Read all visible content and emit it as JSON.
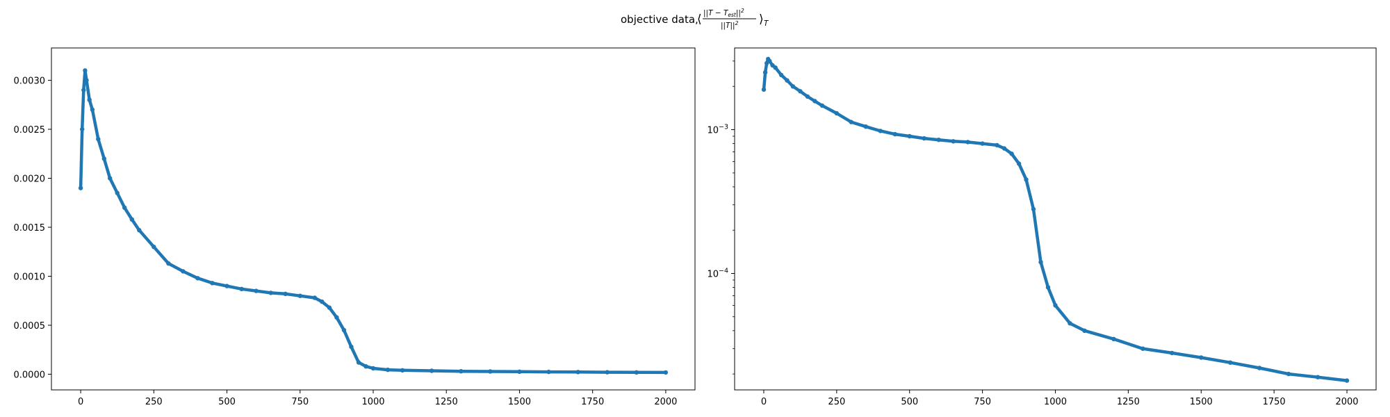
{
  "figure": {
    "suptitle_prefix": "objective data, ",
    "suptitle_math": {
      "open": "⟨",
      "numerator": "||T − T",
      "numerator_sub": "est",
      "numerator_close": "||",
      "numerator_sup": "2",
      "denominator": "||T||",
      "denominator_sup": "2",
      "close": "⟩",
      "close_sub": "T"
    },
    "line_color": "#1f77b4"
  },
  "chart_data": [
    {
      "type": "line",
      "marker": "dot",
      "yscale": "linear",
      "xlim": [
        -100,
        2100
      ],
      "ylim": [
        -0.00016,
        0.00333
      ],
      "xticks": [
        0,
        250,
        500,
        750,
        1000,
        1250,
        1500,
        1750,
        2000
      ],
      "xtick_labels": [
        "0",
        "250",
        "500",
        "750",
        "1000",
        "1250",
        "1500",
        "1750",
        "2000"
      ],
      "yticks": [
        0,
        0.0005,
        0.001,
        0.0015,
        0.002,
        0.0025,
        0.003
      ],
      "ytick_labels": [
        "0.0000",
        "0.0005",
        "0.0010",
        "0.0015",
        "0.0020",
        "0.0025",
        "0.0030"
      ],
      "grid": false,
      "series": [
        {
          "x": [
            0,
            5,
            10,
            15,
            20,
            30,
            40,
            60,
            80,
            100,
            125,
            150,
            175,
            200,
            250,
            300,
            350,
            400,
            450,
            500,
            550,
            600,
            650,
            700,
            750,
            800,
            825,
            850,
            875,
            900,
            925,
            950,
            975,
            1000,
            1050,
            1100,
            1200,
            1300,
            1400,
            1500,
            1600,
            1700,
            1800,
            1900,
            2000
          ],
          "y": [
            0.0019,
            0.0025,
            0.0029,
            0.0031,
            0.003,
            0.0028,
            0.0027,
            0.0024,
            0.0022,
            0.002,
            0.00185,
            0.0017,
            0.00158,
            0.00147,
            0.0013,
            0.00113,
            0.00105,
            0.00098,
            0.00093,
            0.0009,
            0.00087,
            0.00085,
            0.00083,
            0.00082,
            0.0008,
            0.00078,
            0.00074,
            0.00068,
            0.00058,
            0.00045,
            0.00028,
            0.00012,
            8e-05,
            6e-05,
            4.5e-05,
            4e-05,
            3.5e-05,
            3e-05,
            2.8e-05,
            2.6e-05,
            2.4e-05,
            2.2e-05,
            2e-05,
            1.9e-05,
            1.8e-05
          ]
        }
      ]
    },
    {
      "type": "line",
      "marker": "dot",
      "yscale": "log",
      "xlim": [
        -100,
        2100
      ],
      "ylim": [
        1.55e-05,
        0.0037
      ],
      "xticks": [
        0,
        250,
        500,
        750,
        1000,
        1250,
        1500,
        1750,
        2000
      ],
      "xtick_labels": [
        "0",
        "250",
        "500",
        "750",
        "1000",
        "1250",
        "1500",
        "1750",
        "2000"
      ],
      "yticks": [
        0.0001,
        0.001
      ],
      "ytick_base": [
        "10",
        "10"
      ],
      "ytick_exp": [
        "−4",
        "−3"
      ],
      "grid": false,
      "series": [
        {
          "x": [
            0,
            5,
            10,
            15,
            20,
            30,
            40,
            60,
            80,
            100,
            125,
            150,
            175,
            200,
            250,
            300,
            350,
            400,
            450,
            500,
            550,
            600,
            650,
            700,
            750,
            800,
            825,
            850,
            875,
            900,
            925,
            950,
            975,
            1000,
            1050,
            1100,
            1200,
            1300,
            1400,
            1500,
            1600,
            1700,
            1800,
            1900,
            2000
          ],
          "y": [
            0.0019,
            0.0025,
            0.0029,
            0.0031,
            0.003,
            0.0028,
            0.0027,
            0.0024,
            0.0022,
            0.002,
            0.00185,
            0.0017,
            0.00158,
            0.00147,
            0.0013,
            0.00113,
            0.00105,
            0.00098,
            0.00093,
            0.0009,
            0.00087,
            0.00085,
            0.00083,
            0.00082,
            0.0008,
            0.00078,
            0.00074,
            0.00068,
            0.00058,
            0.00045,
            0.00028,
            0.00012,
            8e-05,
            6e-05,
            4.5e-05,
            4e-05,
            3.5e-05,
            3e-05,
            2.8e-05,
            2.6e-05,
            2.4e-05,
            2.2e-05,
            2e-05,
            1.9e-05,
            1.8e-05
          ]
        }
      ]
    }
  ]
}
